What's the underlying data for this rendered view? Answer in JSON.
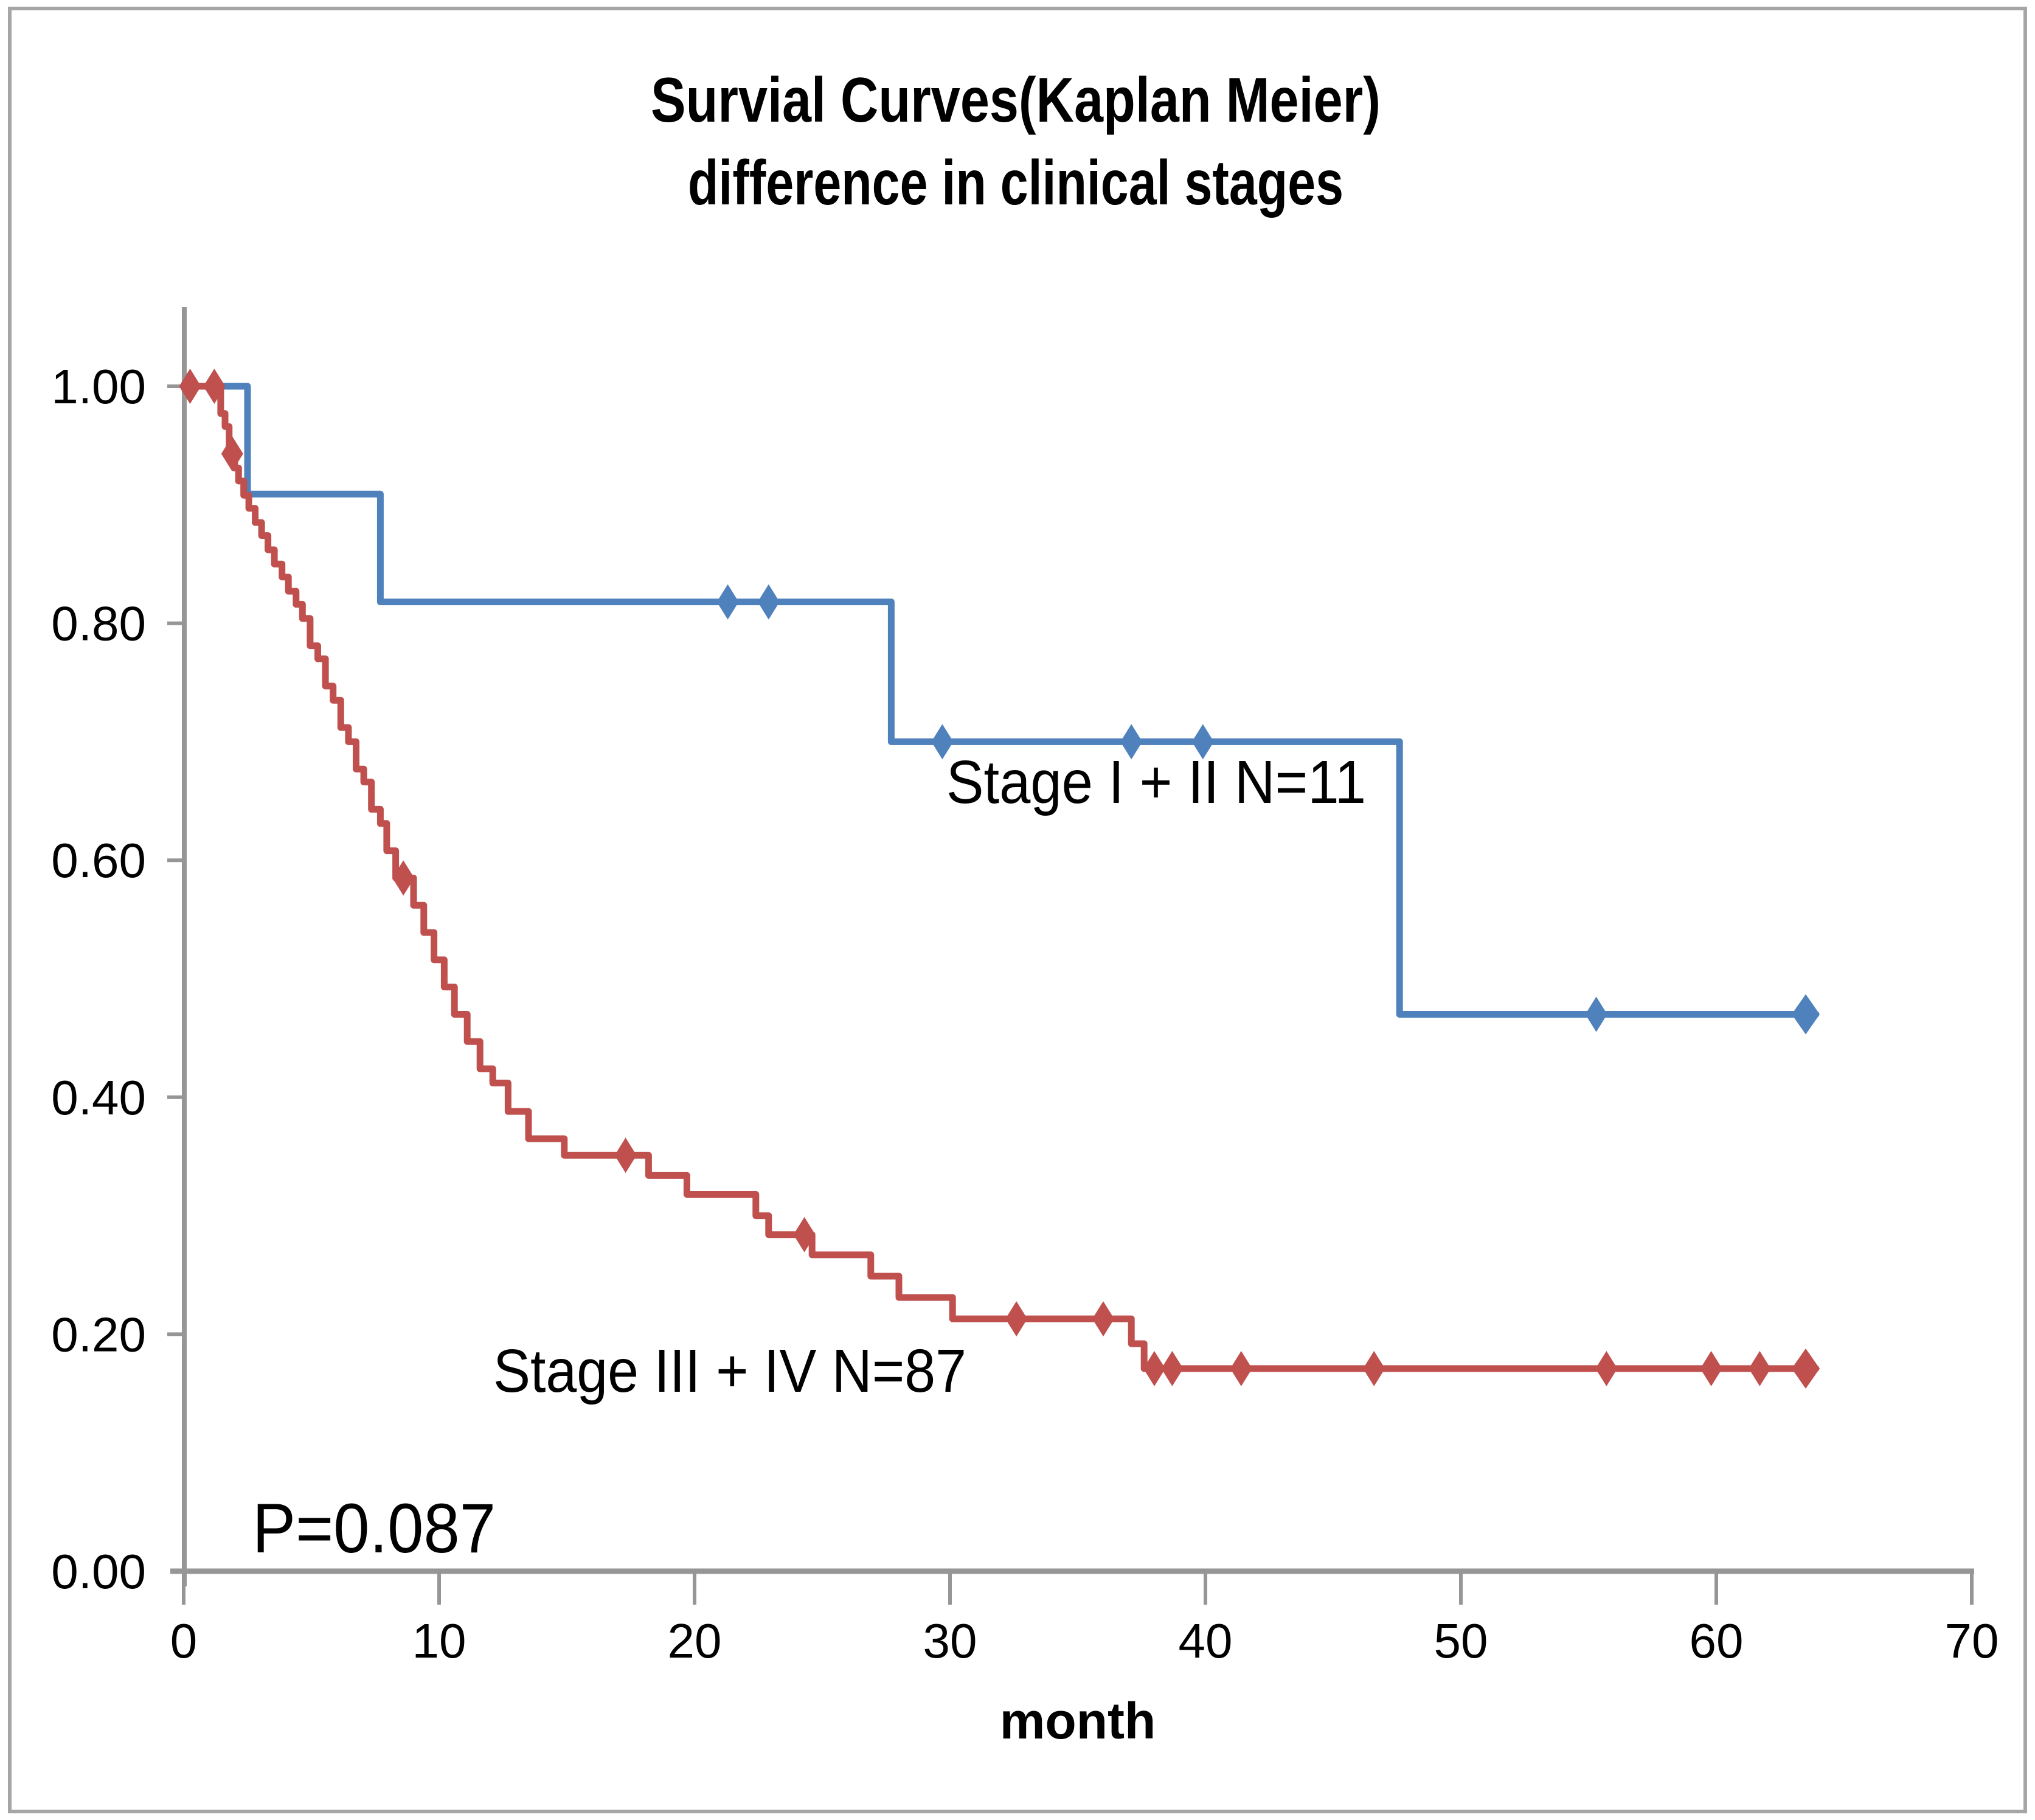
{
  "figure": {
    "background": "#ffffff",
    "border_color": "#a6a6a6",
    "axis_color": "#969696"
  },
  "chart_data": {
    "type": "line",
    "variant": "kaplan-meier-step",
    "title_line1": "Survial Curves(Kaplan Meier)",
    "title_line2": "difference in clinical stages",
    "xlabel": "month",
    "p_value_label": "P=0.087",
    "xlim": [
      0,
      70
    ],
    "ylim": [
      0.0,
      1.0
    ],
    "grid": false,
    "legend": "inline-labels",
    "x_ticks": [
      0,
      10,
      20,
      30,
      40,
      50,
      60,
      70
    ],
    "y_ticks": [
      {
        "label": "1.00",
        "value": 1.0
      },
      {
        "label": "0.80",
        "value": 0.8
      },
      {
        "label": "0.60",
        "value": 0.6
      },
      {
        "label": "0.40",
        "value": 0.4
      },
      {
        "label": "0.20",
        "value": 0.2
      },
      {
        "label": "0.00",
        "value": 0.0
      }
    ],
    "series": [
      {
        "name": "Stage I + II",
        "label": "Stage I + II   N=11",
        "n": 11,
        "color": "#4f81bd",
        "steps": [
          [
            0,
            1.0
          ],
          [
            2.5,
            0.909
          ],
          [
            7.7,
            0.818
          ],
          [
            27.7,
            0.7
          ],
          [
            47.6,
            0.47
          ]
        ],
        "end_month": 63.9,
        "censor_marks": [
          [
            21.3,
            0.818
          ],
          [
            22.9,
            0.818
          ],
          [
            29.7,
            0.7
          ],
          [
            37.1,
            0.7
          ],
          [
            39.9,
            0.7
          ],
          [
            55.3,
            0.47
          ],
          [
            63.5,
            0.47
          ]
        ]
      },
      {
        "name": "Stage III + IV",
        "label": "Stage III + IV  N=87",
        "n": 87,
        "color": "#c0504d",
        "steps": [
          [
            0,
            1.0
          ],
          [
            1.45,
            0.977
          ],
          [
            1.62,
            0.966
          ],
          [
            1.78,
            0.943
          ],
          [
            2.0,
            0.931
          ],
          [
            2.15,
            0.92
          ],
          [
            2.35,
            0.908
          ],
          [
            2.55,
            0.897
          ],
          [
            2.8,
            0.885
          ],
          [
            3.05,
            0.874
          ],
          [
            3.3,
            0.862
          ],
          [
            3.55,
            0.85
          ],
          [
            3.85,
            0.839
          ],
          [
            4.1,
            0.827
          ],
          [
            4.4,
            0.816
          ],
          [
            4.65,
            0.804
          ],
          [
            4.95,
            0.781
          ],
          [
            5.25,
            0.77
          ],
          [
            5.55,
            0.747
          ],
          [
            5.85,
            0.735
          ],
          [
            6.15,
            0.712
          ],
          [
            6.45,
            0.7
          ],
          [
            6.75,
            0.677
          ],
          [
            7.05,
            0.666
          ],
          [
            7.35,
            0.643
          ],
          [
            7.7,
            0.631
          ],
          [
            7.95,
            0.608
          ],
          [
            8.3,
            0.585
          ],
          [
            9.0,
            0.562
          ],
          [
            9.4,
            0.539
          ],
          [
            9.8,
            0.516
          ],
          [
            10.2,
            0.493
          ],
          [
            10.6,
            0.47
          ],
          [
            11.1,
            0.447
          ],
          [
            11.6,
            0.424
          ],
          [
            12.1,
            0.412
          ],
          [
            12.7,
            0.388
          ],
          [
            13.5,
            0.365
          ],
          [
            14.9,
            0.351
          ],
          [
            18.2,
            0.334
          ],
          [
            19.7,
            0.318
          ],
          [
            22.4,
            0.3
          ],
          [
            22.9,
            0.284
          ],
          [
            24.6,
            0.267
          ],
          [
            26.9,
            0.249
          ],
          [
            28.0,
            0.231
          ],
          [
            30.1,
            0.213
          ],
          [
            37.1,
            0.192
          ],
          [
            37.6,
            0.171
          ]
        ],
        "end_month": 63.9,
        "censor_marks": [
          [
            0.25,
            1.0
          ],
          [
            1.2,
            1.0
          ],
          [
            1.9,
            0.943
          ],
          [
            8.6,
            0.585
          ],
          [
            17.3,
            0.351
          ],
          [
            24.3,
            0.284
          ],
          [
            32.6,
            0.213
          ],
          [
            36.0,
            0.213
          ],
          [
            38.0,
            0.171
          ],
          [
            38.7,
            0.171
          ],
          [
            41.4,
            0.171
          ],
          [
            46.6,
            0.171
          ],
          [
            55.7,
            0.171
          ],
          [
            59.8,
            0.171
          ],
          [
            61.7,
            0.171
          ],
          [
            63.5,
            0.171
          ]
        ]
      }
    ]
  }
}
